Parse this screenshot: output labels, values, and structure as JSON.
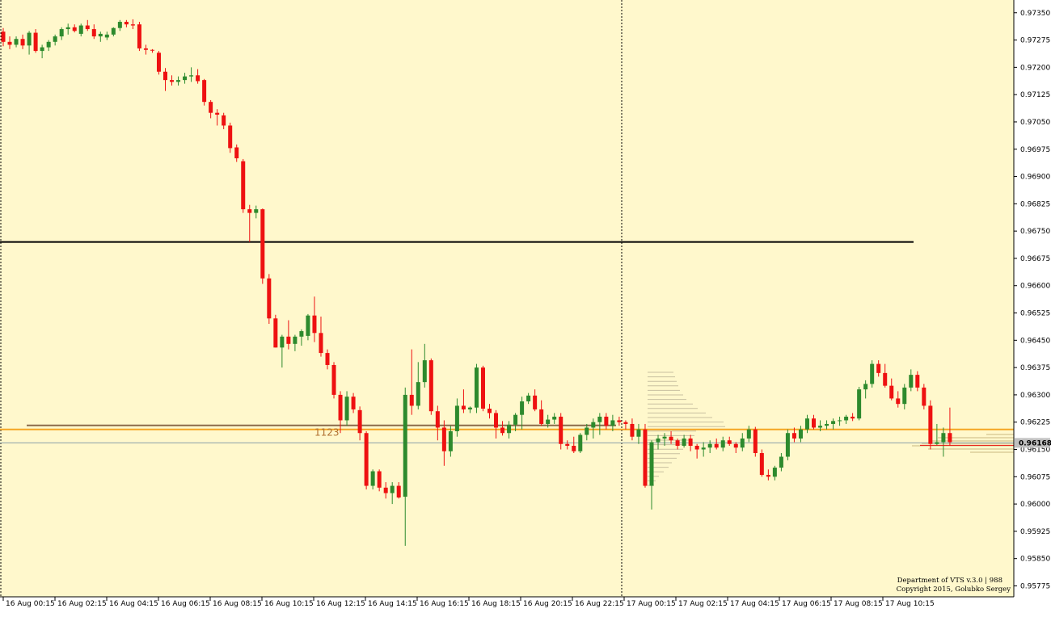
{
  "chart_data": {
    "type": "candlestick",
    "background": "#fff8cc",
    "colors": {
      "bull": "#2d8a2d",
      "bear": "#ee1111",
      "hline": "#000000",
      "level": "#f5a623",
      "level2": "#8a6a4a",
      "price_marker_bg": "#c0c0c0"
    },
    "ylim": [
      0.95745,
      0.97385
    ],
    "y_ticks": [
      "0.97350",
      "0.97275",
      "0.97200",
      "0.97125",
      "0.97050",
      "0.96975",
      "0.96900",
      "0.96825",
      "0.96750",
      "0.96675",
      "0.96600",
      "0.96525",
      "0.96450",
      "0.96375",
      "0.96300",
      "0.96225",
      "0.96150",
      "0.96075",
      "0.96000",
      "0.95925",
      "0.95850",
      "0.95775"
    ],
    "x_ticks": [
      "16 Aug 00:15",
      "16 Aug 02:15",
      "16 Aug 04:15",
      "16 Aug 06:15",
      "16 Aug 08:15",
      "16 Aug 10:15",
      "16 Aug 12:15",
      "16 Aug 14:15",
      "16 Aug 16:15",
      "16 Aug 18:15",
      "16 Aug 20:15",
      "16 Aug 22:15",
      "17 Aug 00:15",
      "17 Aug 02:15",
      "17 Aug 04:15",
      "17 Aug 06:15",
      "17 Aug 08:15",
      "17 Aug 10:15"
    ],
    "current_price": "0.96168",
    "horizontal_line": 0.9672,
    "level_line": 0.96205,
    "level_label": "1123",
    "credit_line1": "Department of VTS  v.3.0 | 988",
    "credit_line2": "Copyright 2015, Golubko Sergey",
    "candles": [
      [
        0.97298,
        0.97308,
        0.97258,
        0.9727
      ],
      [
        0.9727,
        0.97285,
        0.9725,
        0.97262
      ],
      [
        0.97262,
        0.97285,
        0.97255,
        0.97278
      ],
      [
        0.97278,
        0.9729,
        0.9725,
        0.9726
      ],
      [
        0.9726,
        0.973,
        0.97235,
        0.97295
      ],
      [
        0.97295,
        0.97305,
        0.9724,
        0.97245
      ],
      [
        0.97245,
        0.97262,
        0.97225,
        0.97255
      ],
      [
        0.97255,
        0.97275,
        0.97245,
        0.9727
      ],
      [
        0.9727,
        0.9729,
        0.9726,
        0.97285
      ],
      [
        0.97285,
        0.9731,
        0.97275,
        0.97305
      ],
      [
        0.97305,
        0.9732,
        0.9729,
        0.9731
      ],
      [
        0.9731,
        0.97318,
        0.97296,
        0.973
      ],
      [
        0.97292,
        0.9732,
        0.97285,
        0.97315
      ],
      [
        0.97315,
        0.9733,
        0.973,
        0.97305
      ],
      [
        0.97305,
        0.97318,
        0.97278,
        0.97285
      ],
      [
        0.97285,
        0.97298,
        0.9727,
        0.97292
      ],
      [
        0.97282,
        0.97298,
        0.97275,
        0.9729
      ],
      [
        0.9729,
        0.9731,
        0.97285,
        0.97308
      ],
      [
        0.97308,
        0.9733,
        0.973,
        0.97325
      ],
      [
        0.97325,
        0.9733,
        0.9731,
        0.97318
      ],
      [
        0.97318,
        0.97332,
        0.97305,
        0.97315
      ],
      [
        0.97318,
        0.97325,
        0.97245,
        0.97252
      ],
      [
        0.97252,
        0.97262,
        0.97235,
        0.97248
      ],
      [
        0.97248,
        0.9725,
        0.9724,
        0.97246
      ],
      [
        0.9724,
        0.97245,
        0.9718,
        0.97188
      ],
      [
        0.97188,
        0.97198,
        0.97135,
        0.97165
      ],
      [
        0.97165,
        0.97178,
        0.9715,
        0.9716
      ],
      [
        0.9716,
        0.97175,
        0.9715,
        0.97165
      ],
      [
        0.97165,
        0.97185,
        0.97155,
        0.97175
      ],
      [
        0.97175,
        0.972,
        0.9716,
        0.97178
      ],
      [
        0.97178,
        0.97195,
        0.97155,
        0.97162
      ],
      [
        0.97165,
        0.97168,
        0.97095,
        0.97105
      ],
      [
        0.97105,
        0.9711,
        0.9706,
        0.97075
      ],
      [
        0.97075,
        0.97085,
        0.9704,
        0.9707
      ],
      [
        0.97068,
        0.97075,
        0.9703,
        0.9704
      ],
      [
        0.9704,
        0.97048,
        0.96965,
        0.96978
      ],
      [
        0.9698,
        0.96988,
        0.9694,
        0.9695
      ],
      [
        0.96942,
        0.96948,
        0.968,
        0.9681
      ],
      [
        0.9681,
        0.96822,
        0.9672,
        0.968
      ],
      [
        0.968,
        0.9682,
        0.96785,
        0.9681
      ],
      [
        0.9681,
        0.96812,
        0.96605,
        0.9662
      ],
      [
        0.9662,
        0.96632,
        0.96495,
        0.9651
      ],
      [
        0.9651,
        0.9652,
        0.9643,
        0.9643
      ],
      [
        0.9643,
        0.96465,
        0.96375,
        0.9646
      ],
      [
        0.9646,
        0.96505,
        0.96425,
        0.9644
      ],
      [
        0.9644,
        0.96465,
        0.9642,
        0.9646
      ],
      [
        0.9646,
        0.9648,
        0.96435,
        0.96475
      ],
      [
        0.96462,
        0.96522,
        0.9645,
        0.96518
      ],
      [
        0.96518,
        0.9657,
        0.96445,
        0.9647
      ],
      [
        0.9647,
        0.96515,
        0.96405,
        0.96415
      ],
      [
        0.96415,
        0.96425,
        0.9637,
        0.96382
      ],
      [
        0.96382,
        0.9639,
        0.9629,
        0.963
      ],
      [
        0.963,
        0.9631,
        0.96195,
        0.9623
      ],
      [
        0.9623,
        0.9631,
        0.96215,
        0.96295
      ],
      [
        0.96295,
        0.96305,
        0.9625,
        0.9626
      ],
      [
        0.96258,
        0.96268,
        0.96175,
        0.96195
      ],
      [
        0.96195,
        0.962,
        0.9604,
        0.9605
      ],
      [
        0.9605,
        0.96095,
        0.9604,
        0.9609
      ],
      [
        0.9609,
        0.96095,
        0.96035,
        0.96045
      ],
      [
        0.96045,
        0.9606,
        0.96015,
        0.9603
      ],
      [
        0.9603,
        0.9606,
        0.96,
        0.9605
      ],
      [
        0.9605,
        0.9606,
        0.96015,
        0.96018
      ],
      [
        0.9602,
        0.9632,
        0.95885,
        0.963
      ],
      [
        0.963,
        0.96425,
        0.96245,
        0.9627
      ],
      [
        0.9627,
        0.9639,
        0.9626,
        0.96335
      ],
      [
        0.96335,
        0.9644,
        0.9632,
        0.96395
      ],
      [
        0.96395,
        0.964,
        0.96245,
        0.96255
      ],
      [
        0.96255,
        0.9627,
        0.96175,
        0.9621
      ],
      [
        0.9621,
        0.9623,
        0.96105,
        0.96145
      ],
      [
        0.96145,
        0.96215,
        0.9613,
        0.962
      ],
      [
        0.962,
        0.9629,
        0.96185,
        0.9627
      ],
      [
        0.9627,
        0.96315,
        0.9625,
        0.9626
      ],
      [
        0.9626,
        0.96268,
        0.9625,
        0.96265
      ],
      [
        0.96265,
        0.96385,
        0.9625,
        0.96375
      ],
      [
        0.96375,
        0.9638,
        0.96255,
        0.96262
      ],
      [
        0.96262,
        0.96275,
        0.96235,
        0.9625
      ],
      [
        0.9625,
        0.96258,
        0.9618,
        0.9621
      ],
      [
        0.9621,
        0.96228,
        0.96188,
        0.96195
      ],
      [
        0.96195,
        0.96228,
        0.9618,
        0.96218
      ],
      [
        0.96218,
        0.9625,
        0.962,
        0.96245
      ],
      [
        0.96245,
        0.96295,
        0.96205,
        0.96282
      ],
      [
        0.96282,
        0.96305,
        0.96275,
        0.96298
      ],
      [
        0.96298,
        0.96315,
        0.96255,
        0.9626
      ],
      [
        0.9626,
        0.96285,
        0.96215,
        0.9622
      ],
      [
        0.9622,
        0.96245,
        0.9621,
        0.96232
      ],
      [
        0.96232,
        0.9625,
        0.9622,
        0.9624
      ],
      [
        0.9624,
        0.9625,
        0.9615,
        0.96165
      ],
      [
        0.96165,
        0.96175,
        0.9615,
        0.9616
      ],
      [
        0.9616,
        0.96185,
        0.9614,
        0.96145
      ],
      [
        0.96145,
        0.96195,
        0.9614,
        0.9619
      ],
      [
        0.9619,
        0.9622,
        0.96175,
        0.9621
      ],
      [
        0.9621,
        0.96235,
        0.9618,
        0.96225
      ],
      [
        0.96225,
        0.9625,
        0.9619,
        0.9624
      ],
      [
        0.9624,
        0.9625,
        0.96205,
        0.96215
      ],
      [
        0.96215,
        0.96245,
        0.962,
        0.9623
      ],
      [
        0.9623,
        0.9624,
        0.96215,
        0.96225
      ],
      [
        0.96225,
        0.9623,
        0.96205,
        0.9622
      ],
      [
        0.9622,
        0.96235,
        0.96175,
        0.96185
      ],
      [
        0.96185,
        0.9622,
        0.96165,
        0.96205
      ],
      [
        0.96205,
        0.9622,
        0.96045,
        0.9605
      ],
      [
        0.9605,
        0.96175,
        0.95985,
        0.9617
      ],
      [
        0.9617,
        0.9619,
        0.9615,
        0.9618
      ],
      [
        0.9618,
        0.96195,
        0.9616,
        0.96185
      ],
      [
        0.96185,
        0.962,
        0.96165,
        0.96175
      ],
      [
        0.96175,
        0.9618,
        0.9615,
        0.9616
      ],
      [
        0.9616,
        0.9619,
        0.96155,
        0.9618
      ],
      [
        0.9618,
        0.9619,
        0.96145,
        0.9616
      ],
      [
        0.9616,
        0.96165,
        0.96125,
        0.9615
      ],
      [
        0.9615,
        0.9617,
        0.9613,
        0.96155
      ],
      [
        0.96155,
        0.96175,
        0.9614,
        0.96165
      ],
      [
        0.96165,
        0.9618,
        0.9615,
        0.96155
      ],
      [
        0.96155,
        0.96185,
        0.96145,
        0.96175
      ],
      [
        0.96175,
        0.96185,
        0.9616,
        0.96165
      ],
      [
        0.96165,
        0.9617,
        0.9614,
        0.96155
      ],
      [
        0.96155,
        0.96195,
        0.96145,
        0.9618
      ],
      [
        0.9618,
        0.96215,
        0.9617,
        0.96205
      ],
      [
        0.96205,
        0.96212,
        0.9613,
        0.9614
      ],
      [
        0.9614,
        0.9615,
        0.96075,
        0.9608
      ],
      [
        0.9608,
        0.96095,
        0.96065,
        0.96075
      ],
      [
        0.96075,
        0.96105,
        0.96065,
        0.961
      ],
      [
        0.961,
        0.9614,
        0.9609,
        0.9613
      ],
      [
        0.9613,
        0.96205,
        0.9612,
        0.96195
      ],
      [
        0.96195,
        0.9621,
        0.9617,
        0.9618
      ],
      [
        0.9618,
        0.96215,
        0.9617,
        0.96205
      ],
      [
        0.96205,
        0.96245,
        0.96195,
        0.96235
      ],
      [
        0.96235,
        0.96245,
        0.96205,
        0.9621
      ],
      [
        0.9621,
        0.9623,
        0.962,
        0.96215
      ],
      [
        0.96215,
        0.9623,
        0.96205,
        0.9622
      ],
      [
        0.9622,
        0.96235,
        0.96205,
        0.96228
      ],
      [
        0.96228,
        0.9624,
        0.96215,
        0.9623
      ],
      [
        0.9623,
        0.96245,
        0.9622,
        0.9624
      ],
      [
        0.9624,
        0.9625,
        0.96228,
        0.96235
      ],
      [
        0.96235,
        0.96322,
        0.9623,
        0.96315
      ],
      [
        0.96315,
        0.9634,
        0.9629,
        0.9633
      ],
      [
        0.9633,
        0.96395,
        0.9632,
        0.96385
      ],
      [
        0.96385,
        0.96395,
        0.9635,
        0.9636
      ],
      [
        0.9636,
        0.96385,
        0.9632,
        0.96325
      ],
      [
        0.96325,
        0.96345,
        0.96285,
        0.9629
      ],
      [
        0.9629,
        0.9631,
        0.96265,
        0.96275
      ],
      [
        0.96275,
        0.9633,
        0.9626,
        0.9632
      ],
      [
        0.9632,
        0.9637,
        0.9631,
        0.96355
      ],
      [
        0.96355,
        0.96365,
        0.9631,
        0.9632
      ],
      [
        0.9632,
        0.9633,
        0.9626,
        0.9627
      ],
      [
        0.9627,
        0.96285,
        0.9615,
        0.96165
      ],
      [
        0.96165,
        0.9622,
        0.9616,
        0.9617
      ],
      [
        0.9617,
        0.9621,
        0.9613,
        0.96195
      ],
      [
        0.96195,
        0.96265,
        0.9616,
        0.9617
      ]
    ]
  }
}
